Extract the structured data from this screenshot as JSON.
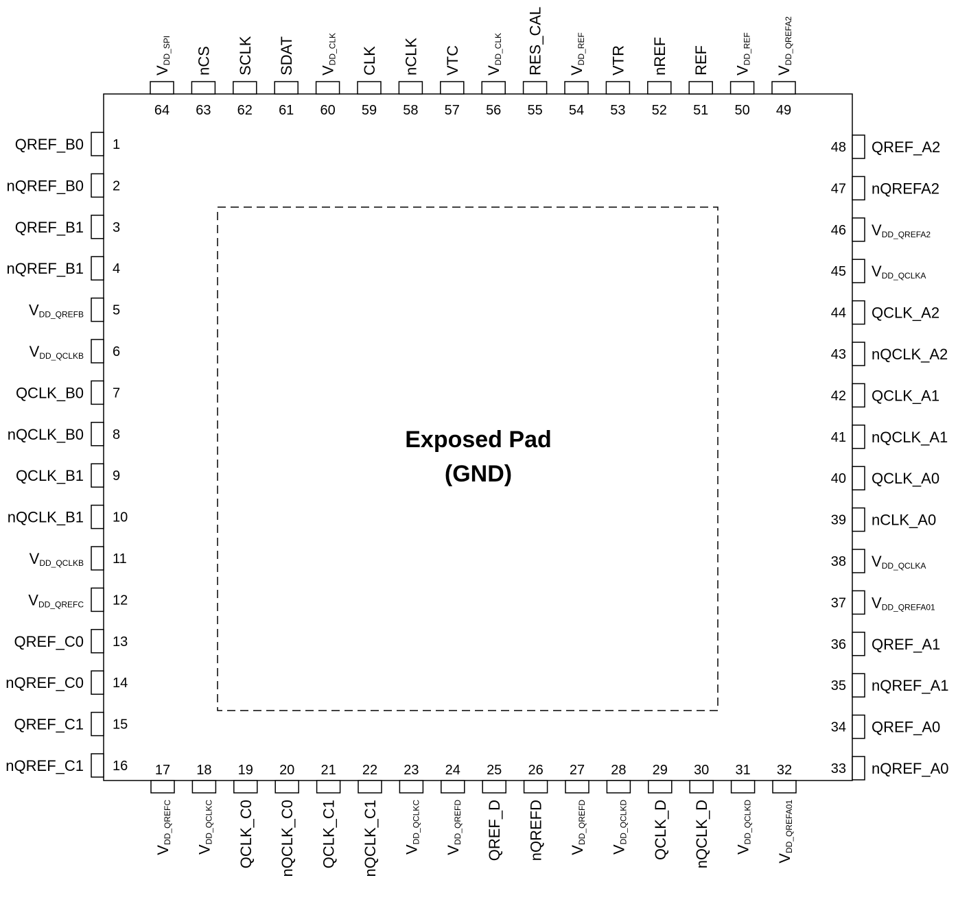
{
  "exposed_pad": {
    "title": "Exposed Pad",
    "subtitle": "(GND)"
  },
  "pins": {
    "left": [
      {
        "num": "1",
        "label": "QREF_B0"
      },
      {
        "num": "2",
        "label": "nQREF_B0"
      },
      {
        "num": "3",
        "label": "QREF_B1"
      },
      {
        "num": "4",
        "label": "nQREF_B1"
      },
      {
        "num": "5",
        "label": "V",
        "sub": "DD_QREFB"
      },
      {
        "num": "6",
        "label": "V",
        "sub": "DD_QCLKB"
      },
      {
        "num": "7",
        "label": "QCLK_B0"
      },
      {
        "num": "8",
        "label": "nQCLK_B0"
      },
      {
        "num": "9",
        "label": "QCLK_B1"
      },
      {
        "num": "10",
        "label": "nQCLK_B1"
      },
      {
        "num": "11",
        "label": "V",
        "sub": "DD_QCLKB"
      },
      {
        "num": "12",
        "label": "V",
        "sub": "DD_QREFC"
      },
      {
        "num": "13",
        "label": "QREF_C0"
      },
      {
        "num": "14",
        "label": "nQREF_C0"
      },
      {
        "num": "15",
        "label": "QREF_C1"
      },
      {
        "num": "16",
        "label": "nQREF_C1"
      }
    ],
    "bottom": [
      {
        "num": "17",
        "label": "V",
        "sub": "DD_QREFC"
      },
      {
        "num": "18",
        "label": "V",
        "sub": "DD_QCLKC"
      },
      {
        "num": "19",
        "label": "QCLK_C0"
      },
      {
        "num": "20",
        "label": "nQCLK_C0"
      },
      {
        "num": "21",
        "label": "QCLK_C1"
      },
      {
        "num": "22",
        "label": "nQCLK_C1"
      },
      {
        "num": "23",
        "label": "V",
        "sub": "DD_QCLKC"
      },
      {
        "num": "24",
        "label": "V",
        "sub": "DD_QREFD"
      },
      {
        "num": "25",
        "label": "QREF_D"
      },
      {
        "num": "26",
        "label": "nQREFD"
      },
      {
        "num": "27",
        "label": "V",
        "sub": "DD_QREFD"
      },
      {
        "num": "28",
        "label": "V",
        "sub": "DD_QCLKD"
      },
      {
        "num": "29",
        "label": "QCLK_D"
      },
      {
        "num": "30",
        "label": "nQCLK_D"
      },
      {
        "num": "31",
        "label": "V",
        "sub": "DD_QCLKD"
      },
      {
        "num": "32",
        "label": "V",
        "sub": "DD_QREFA01"
      }
    ],
    "right": [
      {
        "num": "33",
        "label": "nQREF_A0"
      },
      {
        "num": "34",
        "label": "QREF_A0"
      },
      {
        "num": "35",
        "label": "nQREF_A1"
      },
      {
        "num": "36",
        "label": "QREF_A1"
      },
      {
        "num": "37",
        "label": "V",
        "sub": "DD_QREFA01"
      },
      {
        "num": "38",
        "label": "V",
        "sub": "DD_QCLKA"
      },
      {
        "num": "39",
        "label": "nCLK_A0"
      },
      {
        "num": "40",
        "label": "QCLK_A0"
      },
      {
        "num": "41",
        "label": "nQCLK_A1"
      },
      {
        "num": "42",
        "label": "QCLK_A1"
      },
      {
        "num": "43",
        "label": "nQCLK_A2"
      },
      {
        "num": "44",
        "label": "QCLK_A2"
      },
      {
        "num": "45",
        "label": "V",
        "sub": "DD_QCLKA"
      },
      {
        "num": "46",
        "label": "V",
        "sub": "DD_QREFA2"
      },
      {
        "num": "47",
        "label": "nQREFA2"
      },
      {
        "num": "48",
        "label": "QREF_A2"
      }
    ],
    "top": [
      {
        "num": "49",
        "label": "V",
        "sub": "DD_QREFA2"
      },
      {
        "num": "50",
        "label": "V",
        "sub": "DD_REF"
      },
      {
        "num": "51",
        "label": "REF"
      },
      {
        "num": "52",
        "label": "nREF"
      },
      {
        "num": "53",
        "label": "VTR"
      },
      {
        "num": "54",
        "label": "V",
        "sub": "DD_REF"
      },
      {
        "num": "55",
        "label": "RES_CAL"
      },
      {
        "num": "56",
        "label": "V",
        "sub": "DD_CLK"
      },
      {
        "num": "57",
        "label": "VTC"
      },
      {
        "num": "58",
        "label": "nCLK"
      },
      {
        "num": "59",
        "label": "CLK"
      },
      {
        "num": "60",
        "label": "V",
        "sub": "DD_CLK"
      },
      {
        "num": "61",
        "label": "SDAT"
      },
      {
        "num": "62",
        "label": "SCLK"
      },
      {
        "num": "63",
        "label": "nCS"
      },
      {
        "num": "64",
        "label": "V",
        "sub": "DD_SPI"
      }
    ]
  }
}
